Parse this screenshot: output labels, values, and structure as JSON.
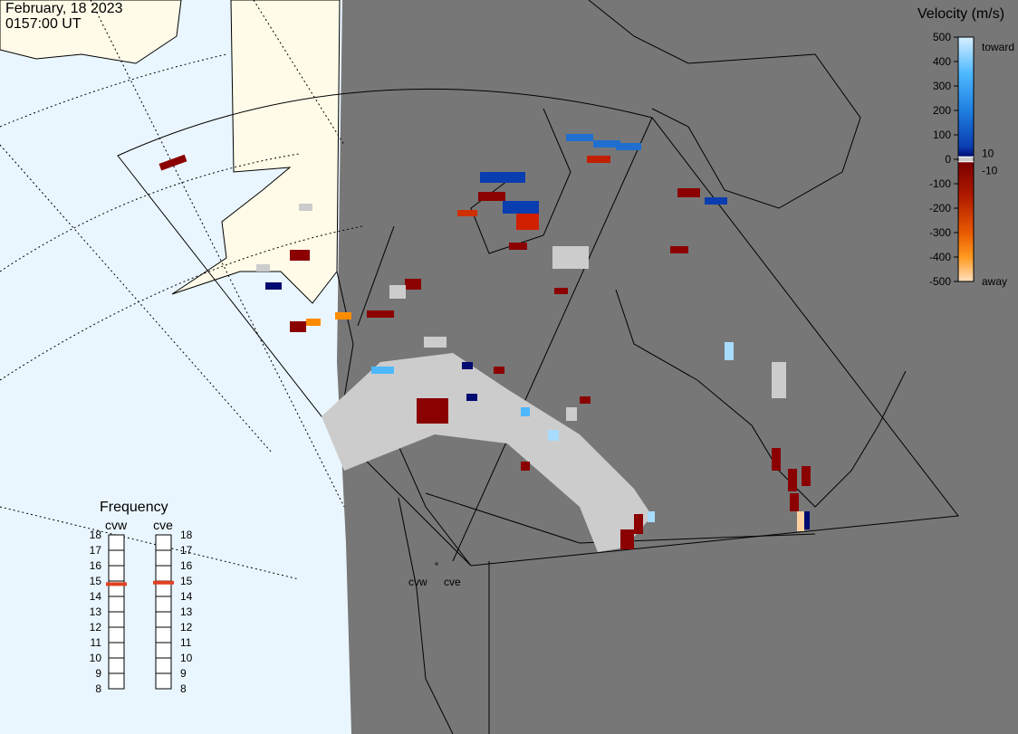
{
  "header": {
    "date": "February, 18 2023",
    "time": "0157:00 UT"
  },
  "velocity_scale": {
    "title": "Velocity (m/s)",
    "range": [
      -500,
      500
    ],
    "ticks": [
      500,
      400,
      300,
      200,
      100,
      0,
      -100,
      -200,
      -300,
      -400,
      -500
    ],
    "inner_ticks": [
      10,
      -10
    ],
    "top_label": "toward",
    "bottom_label": "away"
  },
  "frequency": {
    "title": "Frequency",
    "range": [
      8,
      18
    ],
    "ticks": [
      18,
      17,
      16,
      15,
      14,
      13,
      12,
      11,
      10,
      9,
      8
    ],
    "radars": [
      {
        "name": "cvw",
        "value": 14.8
      },
      {
        "name": "cve",
        "value": 14.9
      }
    ]
  }
}
